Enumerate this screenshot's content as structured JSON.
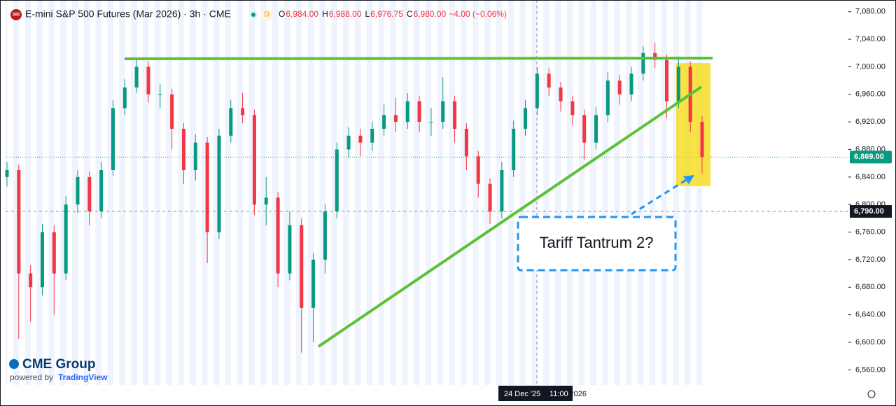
{
  "chart_data": {
    "type": "candlestick",
    "symbol_badge": "500",
    "title": "E-mini S&P 500 Futures (Mar 2026) · 3h · CME",
    "status_badge": "D",
    "ohlc_header": [
      {
        "key": "O",
        "text": "6,984.00"
      },
      {
        "key": "H",
        "text": "6,988.00"
      },
      {
        "key": "L",
        "text": "6,976.75"
      },
      {
        "key": "C",
        "text": "6,980.00"
      }
    ],
    "change": "−4.00 (−0.06%)",
    "open": [
      6840,
      6850,
      6700,
      6680,
      6760,
      6700,
      6800,
      6840,
      6790,
      6850,
      6940,
      6970,
      7000,
      6960,
      6960,
      6910,
      6850,
      6890,
      6760,
      6900,
      6940,
      6930,
      6800,
      6810,
      6700,
      6770,
      6650,
      6720,
      6790,
      6880,
      6900,
      6890,
      6910,
      6930,
      6920,
      6950,
      6920,
      6920,
      6950,
      6910,
      6870,
      6830,
      6790,
      6850,
      6910,
      6940,
      6990,
      6970,
      6950,
      6930,
      6890,
      6930,
      6980,
      6960,
      6990,
      7020,
      7010,
      6950,
      7000,
      6920
    ],
    "high": [
      6862,
      6858,
      6712,
      6772,
      6770,
      6812,
      6850,
      6848,
      6862,
      6952,
      6982,
      7012,
      7008,
      6975,
      6968,
      6918,
      6902,
      6898,
      6910,
      6952,
      6962,
      6938,
      6840,
      6818,
      6790,
      6780,
      6730,
      6800,
      6890,
      6912,
      6910,
      6920,
      6945,
      6955,
      6962,
      6958,
      6940,
      6985,
      6958,
      6918,
      6878,
      6838,
      6862,
      6922,
      6952,
      7000,
      6998,
      6978,
      6958,
      6938,
      6942,
      6992,
      6988,
      7000,
      7030,
      7035,
      7018,
      7015,
      7008,
      6928
    ],
    "low": [
      6826,
      6605,
      6630,
      6668,
      6640,
      6690,
      6788,
      6770,
      6780,
      6842,
      6930,
      6962,
      6948,
      6940,
      6880,
      6830,
      6835,
      6715,
      6750,
      6890,
      6918,
      6785,
      6770,
      6680,
      6690,
      6585,
      6600,
      6700,
      6780,
      6868,
      6870,
      6878,
      6900,
      6905,
      6910,
      6905,
      6900,
      6910,
      6890,
      6850,
      6810,
      6772,
      6780,
      6840,
      6900,
      6930,
      6958,
      6935,
      6915,
      6865,
      6880,
      6920,
      6945,
      6950,
      6980,
      6998,
      6925,
      6940,
      6905,
      6845
    ],
    "close": [
      6850,
      6700,
      6680,
      6760,
      6700,
      6800,
      6840,
      6790,
      6850,
      6940,
      6970,
      7000,
      6960,
      6960,
      6910,
      6850,
      6890,
      6760,
      6900,
      6940,
      6930,
      6800,
      6810,
      6700,
      6770,
      6650,
      6720,
      6790,
      6880,
      6900,
      6890,
      6910,
      6930,
      6920,
      6950,
      6920,
      6920,
      6950,
      6910,
      6870,
      6830,
      6790,
      6850,
      6910,
      6940,
      6990,
      6970,
      6950,
      6930,
      6890,
      6930,
      6980,
      6960,
      6990,
      7020,
      7010,
      6950,
      7000,
      6920,
      6869
    ],
    "up_color": "#089981",
    "down_color": "#f23645",
    "ylim": [
      6538,
      7097
    ],
    "yticks": [
      {
        "value": 6560,
        "label": "6,560.00"
      },
      {
        "value": 6600,
        "label": "6,600.00"
      },
      {
        "value": 6640,
        "label": "6,640.00"
      },
      {
        "value": 6680,
        "label": "6,680.00"
      },
      {
        "value": 6720,
        "label": "6,720.00"
      },
      {
        "value": 6760,
        "label": "6,760.00"
      },
      {
        "value": 6800,
        "label": "6,800.00"
      },
      {
        "value": 6840,
        "label": "6,840.00"
      },
      {
        "value": 6880,
        "label": "6,880.00"
      },
      {
        "value": 6920,
        "label": "6,920.00"
      },
      {
        "value": 6960,
        "label": "6,960.00"
      },
      {
        "value": 7000,
        "label": "7,000.00"
      },
      {
        "value": 7040,
        "label": "7,040.00"
      },
      {
        "value": 7080,
        "label": "7,080.00"
      }
    ],
    "last_price": {
      "value": 6869,
      "label": "6,869.00"
    },
    "crosshair_price": {
      "value": 6790,
      "label": "6,790.00"
    },
    "crosshair_date": "24 Dec '25",
    "crosshair_time": "11:00",
    "x_label_partial": "2026",
    "annotation": "Tariff Tantrum 2?",
    "brand": "CME Group",
    "powered_by": "powered by",
    "powered_by_brand": "TradingView"
  }
}
